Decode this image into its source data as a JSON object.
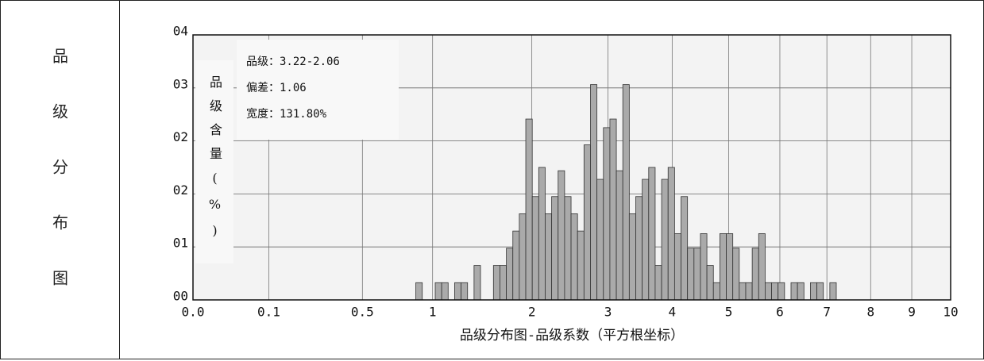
{
  "frame": {
    "side_label": "品级分布图"
  },
  "chart_data": {
    "type": "histogram",
    "xlabel": "品级分布图-品级系数（平方根坐标）",
    "ylabel": "品级含量(%)",
    "annotations": [
      "品级：3.22-2.06",
      "偏差：1.06",
      "宽度：131.80%"
    ],
    "xscale": "sqrt",
    "xlim": [
      0,
      10
    ],
    "xticks": [
      {
        "value": 0,
        "label": "0.0"
      },
      0.1,
      0.5,
      1,
      2,
      3,
      4,
      5,
      6,
      7,
      8,
      9,
      10
    ],
    "ylim": [
      0,
      4.0
    ],
    "yticks": [
      {
        "value": 0,
        "label": "00"
      },
      {
        "value": 0.8,
        "label": "01"
      },
      {
        "value": 1.6,
        "label": "02"
      },
      {
        "value": 2.4,
        "label": "02"
      },
      {
        "value": 3.2,
        "label": "03"
      },
      {
        "value": 4.0,
        "label": "04"
      }
    ],
    "grid": true,
    "color": "#aaaaaa",
    "bins": [
      0.8649,
      0.9158,
      0.9683,
      1.0221,
      1.0774,
      1.1342,
      1.1925,
      1.2522,
      1.3133,
      1.3759,
      1.44,
      1.5055,
      1.5725,
      1.641,
      1.7109,
      1.7822,
      1.855,
      1.9293,
      2.0051,
      2.0822,
      2.1609,
      2.241,
      2.3226,
      2.4056,
      2.4901,
      2.576,
      2.6634,
      2.7523,
      2.8426,
      2.9344,
      3.0276,
      3.1223,
      3.2184,
      3.316,
      3.4151,
      3.5156,
      3.6176,
      3.721,
      3.8259,
      3.9323,
      4.0401,
      4.1494,
      4.2601,
      4.3723,
      4.4859,
      4.601,
      4.7176,
      4.8356,
      4.9551,
      5.076,
      5.1984,
      5.3222,
      5.4476,
      5.5743,
      5.7025,
      5.8322,
      5.9634,
      6.096,
      6.23,
      6.3655,
      6.5025,
      6.6409,
      6.7808,
      6.9222,
      7.065,
      7.2092
    ],
    "values": [
      0.26,
      0,
      0,
      0.26,
      0.26,
      0,
      0.26,
      0.26,
      0,
      0.52,
      0,
      0,
      0.52,
      0.52,
      0.78,
      1.04,
      1.3,
      2.73,
      1.56,
      2.0,
      1.3,
      1.56,
      1.95,
      1.56,
      1.3,
      1.04,
      2.34,
      3.25,
      1.82,
      2.6,
      2.73,
      1.95,
      3.25,
      1.3,
      1.56,
      1.82,
      2.0,
      0.52,
      1.82,
      2.0,
      1.0,
      1.56,
      0.78,
      0.78,
      1.0,
      0.52,
      0.26,
      1.0,
      1.0,
      0.78,
      0.26,
      0.26,
      0.78,
      1.0,
      0.26,
      0.26,
      0.26,
      0,
      0.26,
      0.26,
      0,
      0.26,
      0.26,
      0,
      0.26
    ]
  }
}
